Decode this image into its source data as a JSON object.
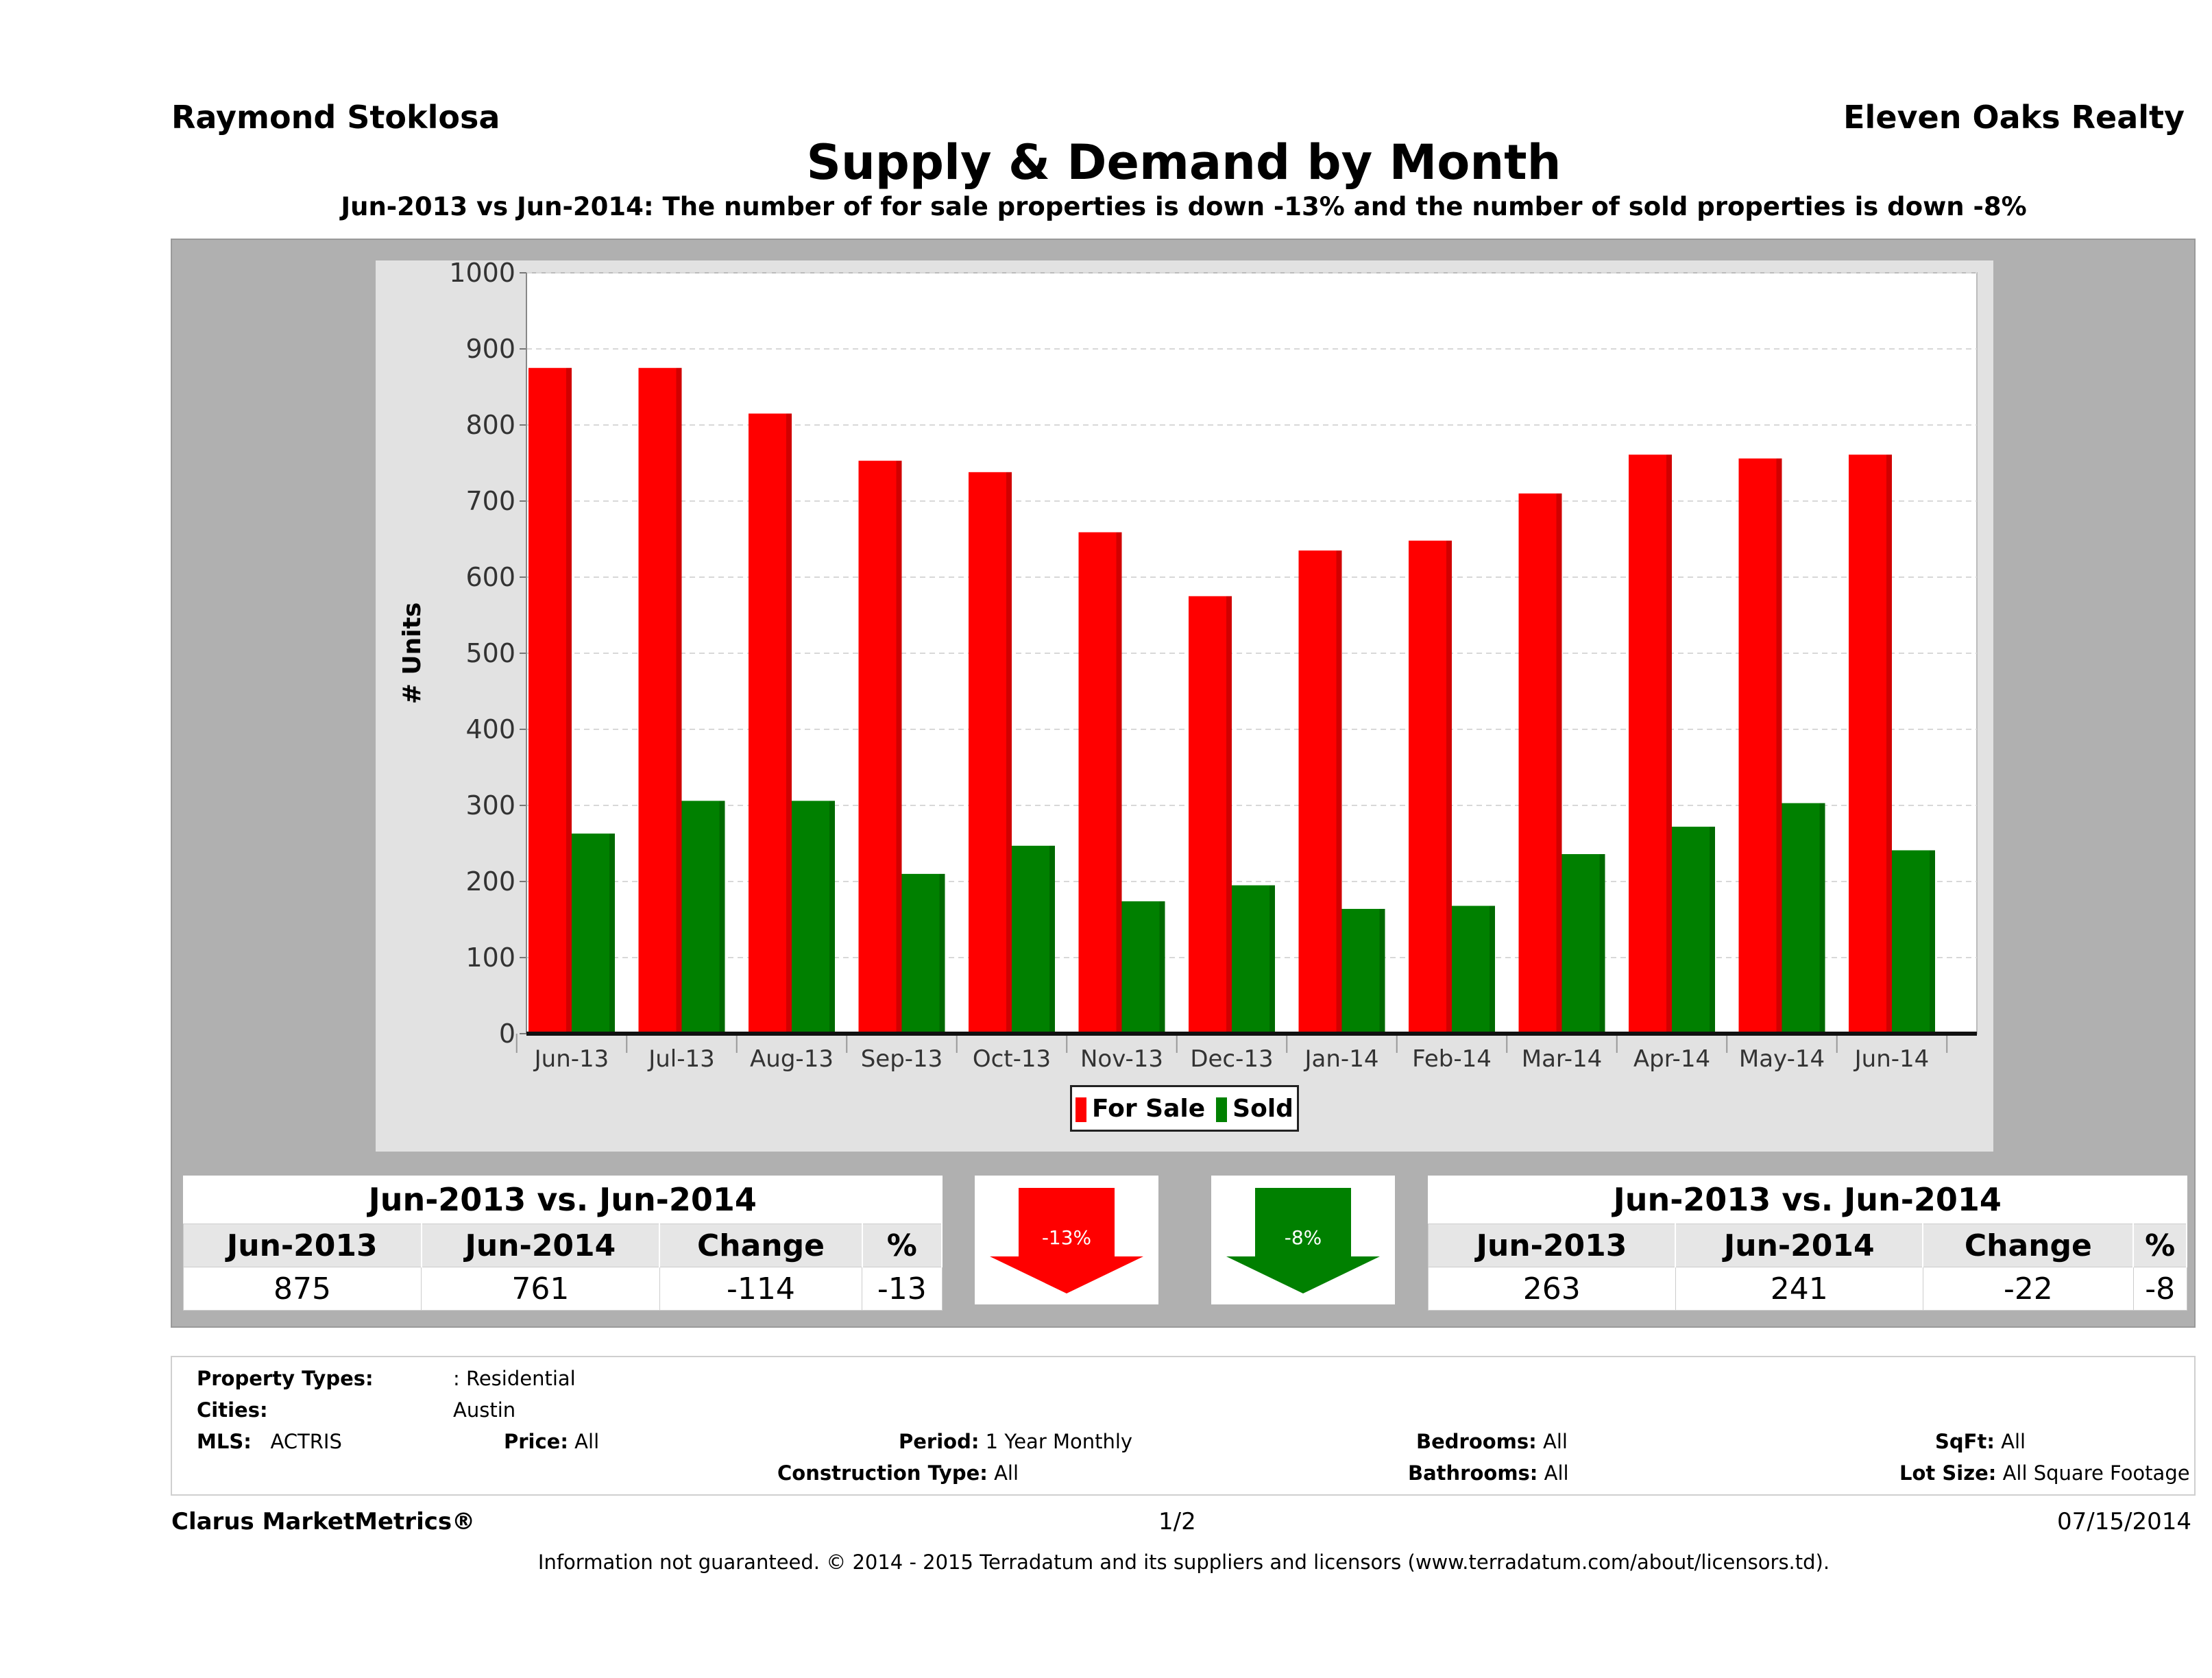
{
  "header": {
    "agent": "Raymond Stoklosa",
    "company": "Eleven Oaks Realty",
    "title": "Supply & Demand by Month",
    "subtitle": "Jun-2013 vs Jun-2014: The number of for sale properties is down -13% and the number of sold properties is down -8%"
  },
  "chart_data": {
    "type": "bar",
    "categories": [
      "Jun-13",
      "Jul-13",
      "Aug-13",
      "Sep-13",
      "Oct-13",
      "Nov-13",
      "Dec-13",
      "Jan-14",
      "Feb-14",
      "Mar-14",
      "Apr-14",
      "May-14",
      "Jun-14"
    ],
    "series": [
      {
        "name": "For Sale",
        "color": "#ff0000",
        "values": [
          875,
          875,
          815,
          753,
          738,
          659,
          575,
          635,
          648,
          710,
          761,
          756,
          761
        ]
      },
      {
        "name": "Sold",
        "color": "#008000",
        "values": [
          263,
          306,
          306,
          210,
          247,
          174,
          195,
          164,
          168,
          236,
          272,
          303,
          241
        ]
      }
    ],
    "ylabel": "# Units",
    "ylim": [
      0,
      1000
    ],
    "yticks": [
      0,
      100,
      200,
      300,
      400,
      500,
      600,
      700,
      800,
      900,
      1000
    ],
    "grid": true,
    "legend_position": "bottom"
  },
  "for_sale_summary": {
    "heading": "Jun-2013 vs. Jun-2014",
    "columns": [
      "Jun-2013",
      "Jun-2014",
      "Change",
      "%"
    ],
    "values": [
      "875",
      "761",
      "-114",
      "-13"
    ],
    "badge": "-13%",
    "arrow_color": "#ff0000",
    "arrow_icon": "down-arrow-icon"
  },
  "sold_summary": {
    "heading": "Jun-2013 vs. Jun-2014",
    "columns": [
      "Jun-2013",
      "Jun-2014",
      "Change",
      "%"
    ],
    "values": [
      "263",
      "241",
      "-22",
      "-8"
    ],
    "badge": "-8%",
    "arrow_color": "#008000",
    "arrow_icon": "down-arrow-icon"
  },
  "criteria": {
    "property_types_label": "Property Types:",
    "property_types_value": ": Residential",
    "cities_label": "Cities:",
    "cities_value": "Austin",
    "mls_label": "MLS:",
    "mls_value": "ACTRIS",
    "price_label": "Price:",
    "price_value": "All",
    "period_label": "Period:",
    "period_value": "1 Year Monthly",
    "construction_label": "Construction Type:",
    "construction_value": "All",
    "bedrooms_label": "Bedrooms:",
    "bedrooms_value": "All",
    "bathrooms_label": "Bathrooms:",
    "bathrooms_value": "All",
    "sqft_label": "SqFt:",
    "sqft_value": "All",
    "lotsize_label": "Lot Size:",
    "lotsize_value": "All Square Footage"
  },
  "footer": {
    "brand": "Clarus MarketMetrics®",
    "page": "1/2",
    "date": "07/15/2014",
    "disclaimer": "Information not guaranteed. © 2014 - 2015 Terradatum and its suppliers and licensors (www.terradatum.com/about/licensors.td)."
  }
}
